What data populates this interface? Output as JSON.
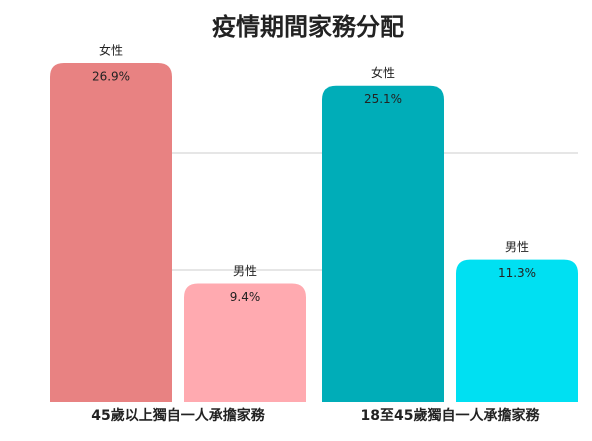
{
  "chart_data": {
    "type": "bar",
    "title": "疫情期間家務分配",
    "categories": [
      "45歲以上獨自一人承擔家務",
      "18至45歲獨自一人承擔家務"
    ],
    "series": [
      {
        "name": "女性",
        "colors": [
          "#e88282",
          "#00adb8"
        ],
        "values": [
          26.9,
          25.1
        ],
        "value_labels": [
          "26.9%",
          "25.1%"
        ]
      },
      {
        "name": "男性",
        "colors": [
          "#ffaab0",
          "#00e0f2"
        ],
        "values": [
          9.4,
          11.3
        ],
        "value_labels": [
          "9.4%",
          "11.3%"
        ]
      }
    ]
  }
}
